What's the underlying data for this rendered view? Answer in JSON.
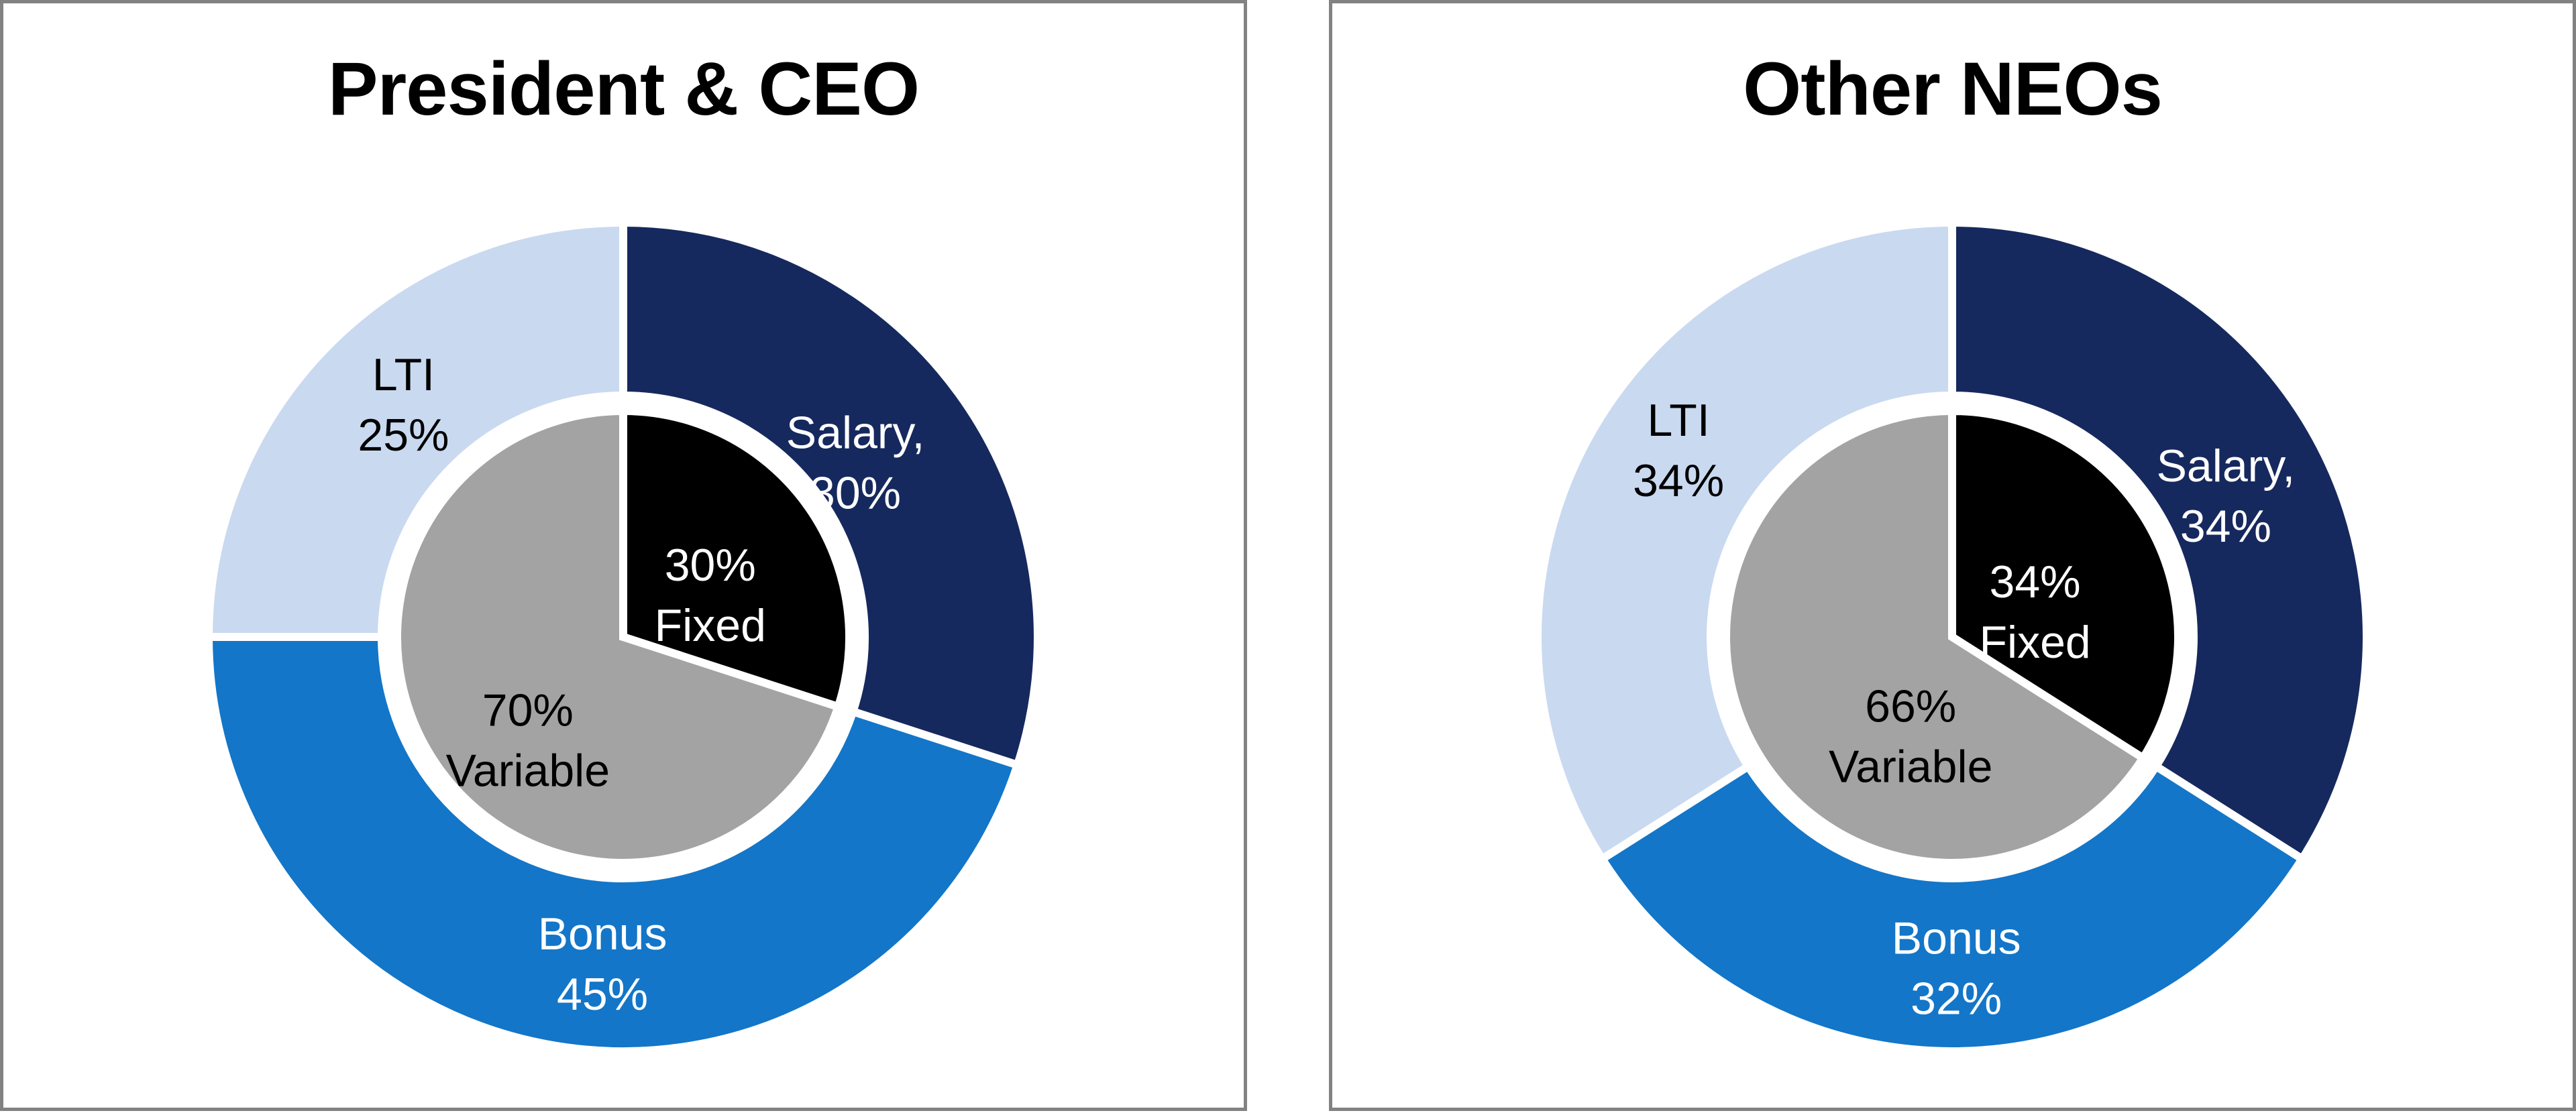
{
  "style": {
    "panel_border_color": "#828282",
    "separator_color": "#ffffff",
    "background_color": "#ffffff"
  },
  "chart_data": [
    {
      "type": "donut",
      "title": "President & CEO",
      "layout": {
        "start_angle_deg": 0,
        "direction": "clockwise",
        "legend": "none"
      },
      "outer_ring": [
        {
          "label": "Salary",
          "value": 30,
          "color": "#16295E",
          "text_color": "#ffffff",
          "label_lines": [
            "Salary,",
            "30%"
          ],
          "label_pos": [
            0.56,
            -0.42
          ]
        },
        {
          "label": "Bonus",
          "value": 45,
          "color": "#1376C8",
          "text_color": "#ffffff",
          "label_lines": [
            "Bonus",
            "45%"
          ],
          "label_pos": [
            -0.05,
            0.79
          ]
        },
        {
          "label": "LTI",
          "value": 25,
          "color": "#C9D9F0",
          "text_color": "#000000",
          "label_lines": [
            "LTI",
            "25%"
          ],
          "label_pos": [
            -0.53,
            -0.56
          ]
        }
      ],
      "inner_pie": [
        {
          "label": "Fixed",
          "value": 30,
          "color": "#000000",
          "text_color": "#ffffff",
          "label_lines": [
            "30%",
            "Fixed"
          ],
          "label_pos": [
            0.21,
            -0.1
          ]
        },
        {
          "label": "Variable",
          "value": 70,
          "color": "#A3A3A3",
          "text_color": "#000000",
          "label_lines": [
            "70%",
            "Variable"
          ],
          "label_pos": [
            -0.23,
            0.25
          ]
        }
      ]
    },
    {
      "type": "donut",
      "title": "Other NEOs",
      "layout": {
        "start_angle_deg": 0,
        "direction": "clockwise",
        "legend": "none"
      },
      "outer_ring": [
        {
          "label": "Salary",
          "value": 34,
          "color": "#16295E",
          "text_color": "#ffffff",
          "label_lines": [
            "Salary,",
            "34%"
          ],
          "label_pos": [
            0.66,
            -0.34
          ]
        },
        {
          "label": "Bonus",
          "value": 32,
          "color": "#1376C8",
          "text_color": "#ffffff",
          "label_lines": [
            "Bonus",
            "32%"
          ],
          "label_pos": [
            0.01,
            0.8
          ]
        },
        {
          "label": "LTI",
          "value": 34,
          "color": "#C9D9F0",
          "text_color": "#000000",
          "label_lines": [
            "LTI",
            "34%"
          ],
          "label_pos": [
            -0.66,
            -0.45
          ]
        }
      ],
      "inner_pie": [
        {
          "label": "Fixed",
          "value": 34,
          "color": "#000000",
          "text_color": "#ffffff",
          "label_lines": [
            "34%",
            "Fixed"
          ],
          "label_pos": [
            0.2,
            -0.06
          ]
        },
        {
          "label": "Variable",
          "value": 66,
          "color": "#A3A3A3",
          "text_color": "#000000",
          "label_lines": [
            "66%",
            "Variable"
          ],
          "label_pos": [
            -0.1,
            0.24
          ]
        }
      ]
    }
  ]
}
